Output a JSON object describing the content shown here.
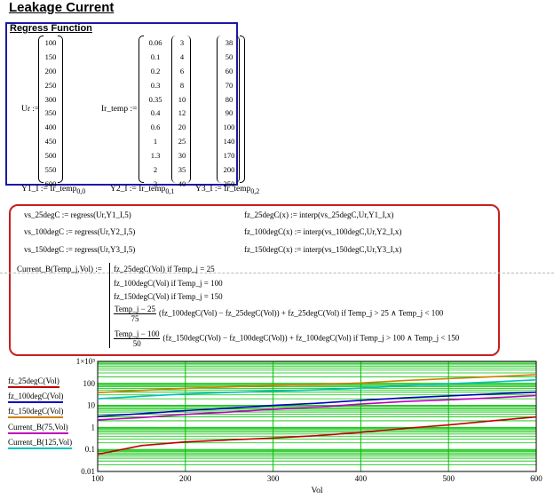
{
  "page_title": "Leakage Current",
  "regress_section": {
    "title": "Regress Function",
    "ur_label": "Ur :=",
    "ur_values": [
      "100",
      "150",
      "200",
      "250",
      "300",
      "350",
      "400",
      "450",
      "500",
      "550",
      "600"
    ],
    "ir_label": "Ir_temp :=",
    "ir_col1": [
      "0.06",
      "0.1",
      "0.2",
      "0.3",
      "0.35",
      "0.4",
      "0.6",
      "1",
      "1.3",
      "2",
      "3"
    ],
    "ir_col2": [
      "3",
      "4",
      "6",
      "8",
      "10",
      "12",
      "20",
      "25",
      "30",
      "35",
      "40"
    ],
    "ir_col3": [
      "38",
      "50",
      "60",
      "70",
      "80",
      "90",
      "100",
      "140",
      "170",
      "200",
      "250"
    ],
    "y_defs": [
      {
        "name": "Y1_I := Ir_temp",
        "sub": "0,0"
      },
      {
        "name": "Y2_I := Ir_temp",
        "sub": "0,1"
      },
      {
        "name": "Y3_I := Ir_temp",
        "sub": "0,2"
      }
    ]
  },
  "formulas": {
    "vs25": "vs_25degC := regress(Ur,Y1_I,5)",
    "vs100": "vs_100degC := regress(Ur,Y2_I,5)",
    "vs150": "vs_150degC := regress(Ur,Y3_I,5)",
    "fz25": "fz_25degC(x) := interp(vs_25degC,Ur,Y1_I,x)",
    "fz100": "fz_100degC(x) := interp(vs_100degC,Ur,Y2_I,x)",
    "fz150": "fz_150degC(x) := interp(vs_150degC,Ur,Y3_I,x)",
    "current_def": "Current_B(Temp_j,Vol) :=",
    "case1": "fz_25degC(Vol)  if  Temp_j = 25",
    "case2": "fz_100degC(Vol)  if  Temp_j = 100",
    "case3": "fz_150degC(Vol)  if  Temp_j = 150",
    "case4_num": "Temp_j − 25",
    "case4_den": "75",
    "case4_rest": "(fz_100degC(Vol) − fz_25degC(Vol)) + fz_25degC(Vol)   if  Temp_j > 25 ∧ Temp_j < 100",
    "case5_num": "Temp_j − 100",
    "case5_den": "50",
    "case5_rest": "(fz_150degC(Vol) − fz_100degC(Vol)) + fz_100degC(Vol)   if  Temp_j > 100 ∧ Temp_j < 150"
  },
  "legend": [
    {
      "label": "fz_25degC(Vol)",
      "color": "#c00000"
    },
    {
      "label": "fz_100degC(Vol)",
      "color": "#0000c0"
    },
    {
      "label": "fz_150degC(Vol)",
      "color": "#d08000"
    },
    {
      "label": "Current_B(75,Vol)",
      "color": "#c000c0"
    },
    {
      "label": "Current_B(125,Vol)",
      "color": "#00c0c0"
    }
  ],
  "chart_data": {
    "type": "line",
    "xlabel": "Vol",
    "ylabel": "",
    "xlim": [
      100,
      600
    ],
    "ylim": [
      0.01,
      1000
    ],
    "y_scale": "log",
    "x_ticks": [
      "100",
      "200",
      "300",
      "400",
      "500",
      "600"
    ],
    "y_ticks": [
      "0.01",
      "0.1",
      "1",
      "10",
      "100",
      "1×10³"
    ],
    "grid": true,
    "grid_color": "#00c000",
    "x": [
      100,
      150,
      200,
      250,
      300,
      350,
      400,
      450,
      500,
      550,
      600
    ],
    "series": [
      {
        "name": "fz_25degC(Vol)",
        "color": "#c00000",
        "values": [
          0.06,
          0.15,
          0.22,
          0.27,
          0.33,
          0.42,
          0.6,
          0.9,
          1.3,
          2,
          3
        ]
      },
      {
        "name": "fz_100degC(Vol)",
        "color": "#0000c0",
        "values": [
          3.2,
          4.2,
          5.8,
          7.5,
          10,
          12.5,
          17,
          22,
          27,
          33,
          40
        ]
      },
      {
        "name": "fz_150degC(Vol)",
        "color": "#d08000",
        "values": [
          38,
          48,
          60,
          70,
          80,
          90,
          105,
          135,
          165,
          200,
          250
        ]
      },
      {
        "name": "Current_B(75,Vol)",
        "color": "#c000c0",
        "values": [
          2.2,
          2.8,
          3.9,
          5,
          6.7,
          8.4,
          11.5,
          15,
          18,
          22,
          28
        ]
      },
      {
        "name": "Current_B(125,Vol)",
        "color": "#00c0c0",
        "values": [
          20,
          26,
          33,
          39,
          45,
          51,
          61,
          78,
          96,
          116,
          145
        ]
      }
    ]
  }
}
